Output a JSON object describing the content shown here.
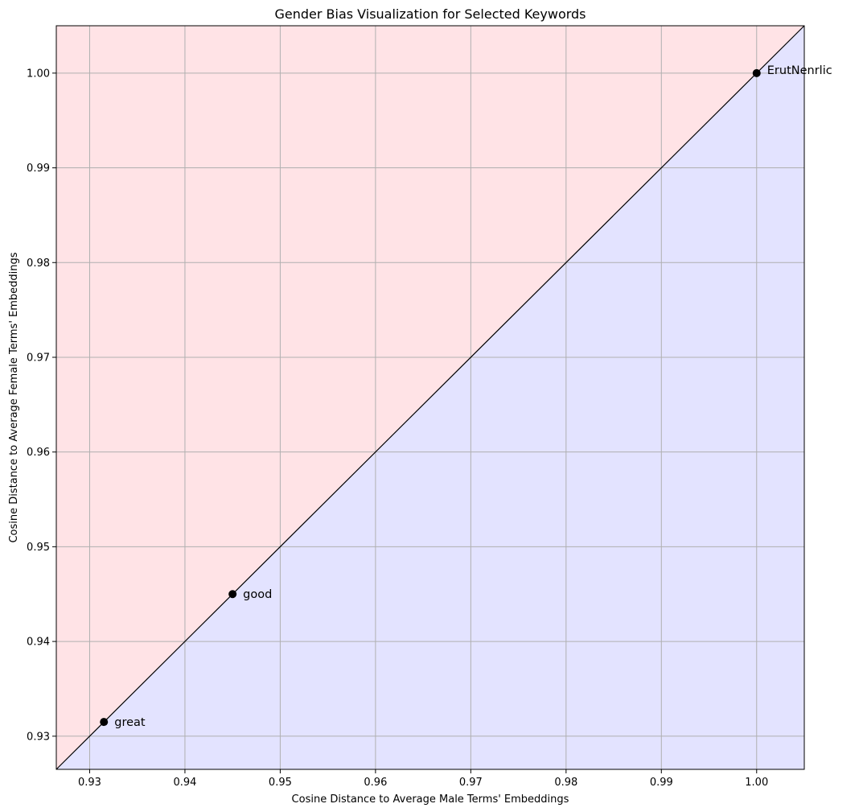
{
  "chart_data": {
    "type": "scatter",
    "title": "Gender Bias Visualization for Selected Keywords",
    "xlabel": "Cosine Distance to Average Male Terms' Embeddings",
    "ylabel": "Cosine Distance to Average Female Terms' Embeddings",
    "xlim": [
      0.9265,
      1.005
    ],
    "ylim": [
      0.9265,
      1.005
    ],
    "xticks": [
      "0.93",
      "0.94",
      "0.95",
      "0.96",
      "0.97",
      "0.98",
      "0.99",
      "1.00"
    ],
    "yticks": [
      "0.93",
      "0.94",
      "0.95",
      "0.96",
      "0.97",
      "0.98",
      "0.99",
      "1.00"
    ],
    "grid": true,
    "reference_line": "y = x",
    "regions": {
      "above_diagonal_color": "#ffe3e6",
      "below_diagonal_color": "#e3e3ff"
    },
    "points": [
      {
        "label": "great",
        "x": 0.9315,
        "y": 0.9315
      },
      {
        "label": "good",
        "x": 0.945,
        "y": 0.945
      },
      {
        "label": "",
        "x": 1.0,
        "y": 1.0
      }
    ],
    "overlapping_label_text": "ErutNenrlic"
  }
}
